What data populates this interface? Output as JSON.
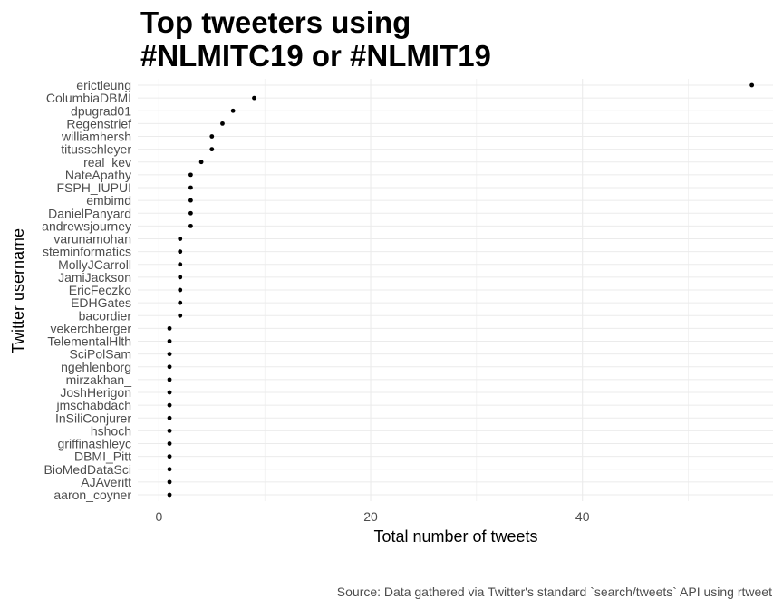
{
  "chart_data": {
    "type": "scatter",
    "title_lines": [
      "Top tweeters using",
      "#NLMITC19 or #NLMIT19"
    ],
    "xlabel": "Total number of tweets",
    "ylabel": "Twitter username",
    "caption": "Source: Data gathered via Twitter's standard `search/tweets` API using rtweet",
    "xlim": [
      -2,
      58
    ],
    "xticks": [
      0,
      20,
      40
    ],
    "grid": true,
    "points": [
      {
        "name": "erictleung",
        "value": 56
      },
      {
        "name": "ColumbiaDBMI",
        "value": 9
      },
      {
        "name": "dpugrad01",
        "value": 7
      },
      {
        "name": "Regenstrief",
        "value": 6
      },
      {
        "name": "williamhersh",
        "value": 5
      },
      {
        "name": "titusschleyer",
        "value": 5
      },
      {
        "name": "real_kev",
        "value": 4
      },
      {
        "name": "NateApathy",
        "value": 3
      },
      {
        "name": "FSPH_IUPUI",
        "value": 3
      },
      {
        "name": "embimd",
        "value": 3
      },
      {
        "name": "DanielPanyard",
        "value": 3
      },
      {
        "name": "andrewsjourney",
        "value": 3
      },
      {
        "name": "varunamohan",
        "value": 2
      },
      {
        "name": "steminformatics",
        "value": 2
      },
      {
        "name": "MollyJCarroll",
        "value": 2
      },
      {
        "name": "JamiJackson",
        "value": 2
      },
      {
        "name": "EricFeczko",
        "value": 2
      },
      {
        "name": "EDHGates",
        "value": 2
      },
      {
        "name": "bacordier",
        "value": 2
      },
      {
        "name": "vekerchberger",
        "value": 1
      },
      {
        "name": "TelementalHlth",
        "value": 1
      },
      {
        "name": "SciPolSam",
        "value": 1
      },
      {
        "name": "ngehlenborg",
        "value": 1
      },
      {
        "name": "mirzakhan_",
        "value": 1
      },
      {
        "name": "JoshHerigon",
        "value": 1
      },
      {
        "name": "jmschabdach",
        "value": 1
      },
      {
        "name": "InSiliConjurer",
        "value": 1
      },
      {
        "name": "hshoch",
        "value": 1
      },
      {
        "name": "griffinashleyc",
        "value": 1
      },
      {
        "name": "DBMI_Pitt",
        "value": 1
      },
      {
        "name": "BioMedDataSci",
        "value": 1
      },
      {
        "name": "AJAveritt",
        "value": 1
      },
      {
        "name": "aaron_coyner",
        "value": 1
      }
    ],
    "colors": {
      "point": "#000000",
      "grid": "#ebebeb",
      "tick_text": "#4d4d4d"
    }
  }
}
